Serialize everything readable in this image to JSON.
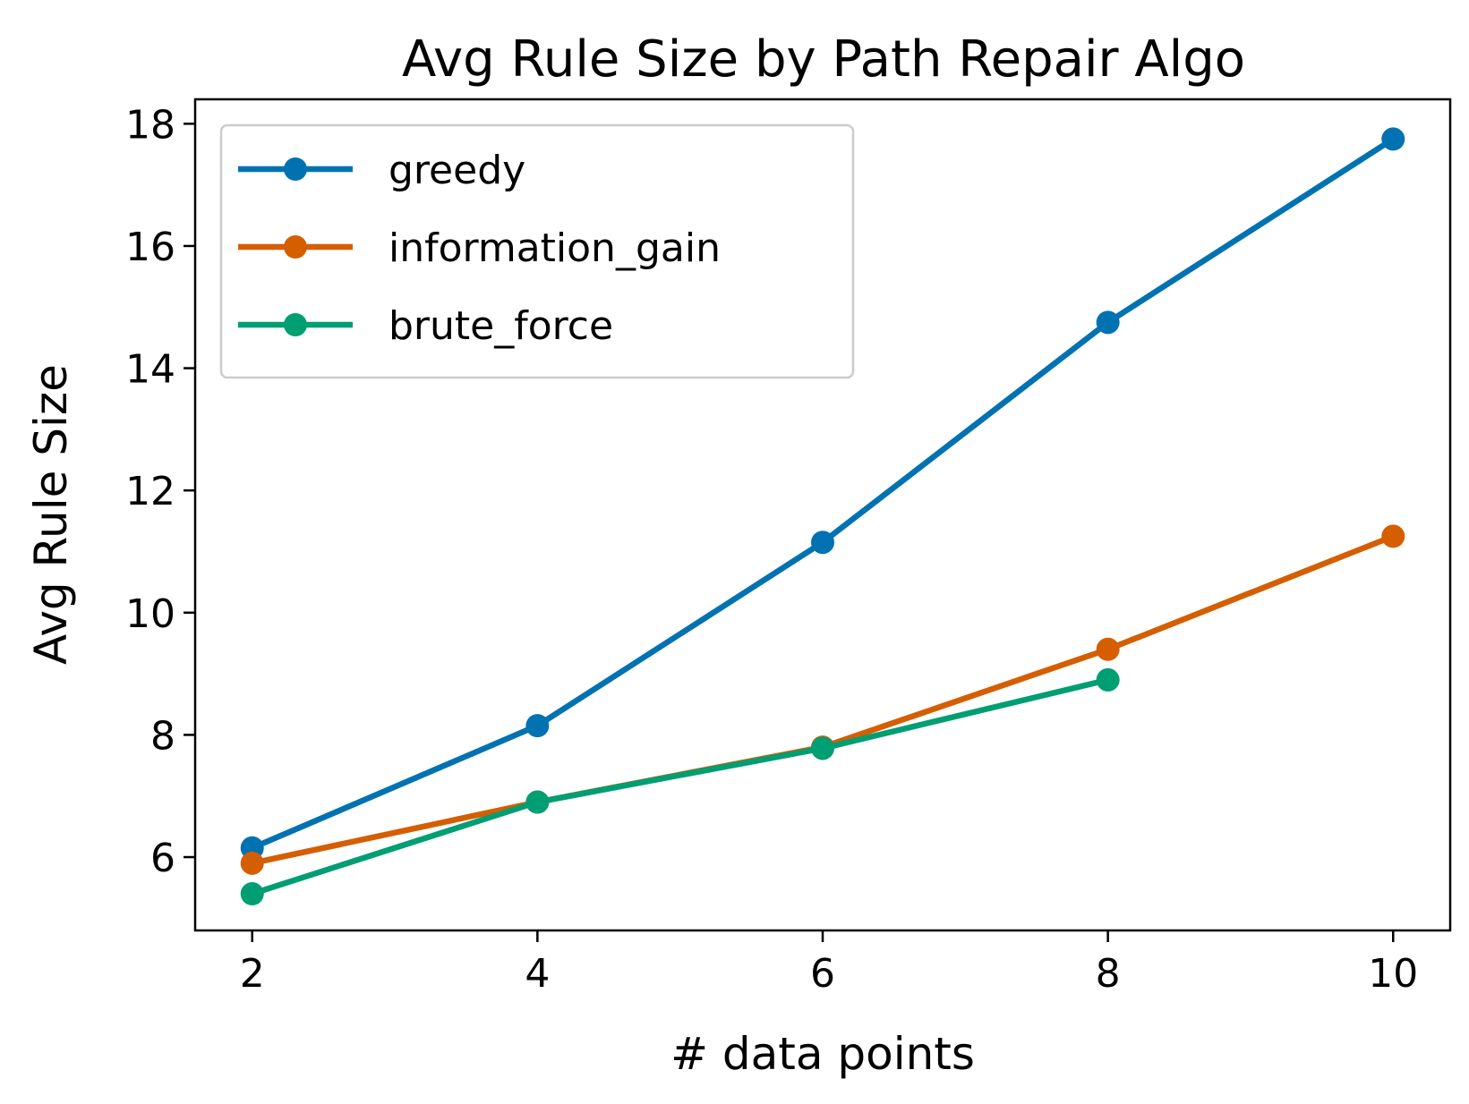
{
  "chart_data": {
    "type": "line",
    "title": "Avg Rule Size by Path Repair Algo",
    "xlabel": "# data points",
    "ylabel": "Avg Rule Size",
    "xlim": [
      1.6,
      10.4
    ],
    "ylim": [
      4.8,
      18.4
    ],
    "xticks": [
      2,
      4,
      6,
      8,
      10
    ],
    "yticks": [
      6,
      8,
      10,
      12,
      14,
      16,
      18
    ],
    "grid": false,
    "legend_position": "top-left",
    "series": [
      {
        "name": "greedy",
        "color": "#0072B2",
        "x": [
          2,
          4,
          6,
          8,
          10
        ],
        "y": [
          6.15,
          8.15,
          11.15,
          14.75,
          17.75
        ]
      },
      {
        "name": "information_gain",
        "color": "#D55E00",
        "x": [
          2,
          4,
          6,
          8,
          10
        ],
        "y": [
          5.9,
          6.9,
          7.8,
          9.4,
          11.25
        ]
      },
      {
        "name": "brute_force",
        "color": "#009E73",
        "x": [
          2,
          4,
          6,
          8
        ],
        "y": [
          5.4,
          6.9,
          7.78,
          8.9
        ]
      }
    ]
  }
}
